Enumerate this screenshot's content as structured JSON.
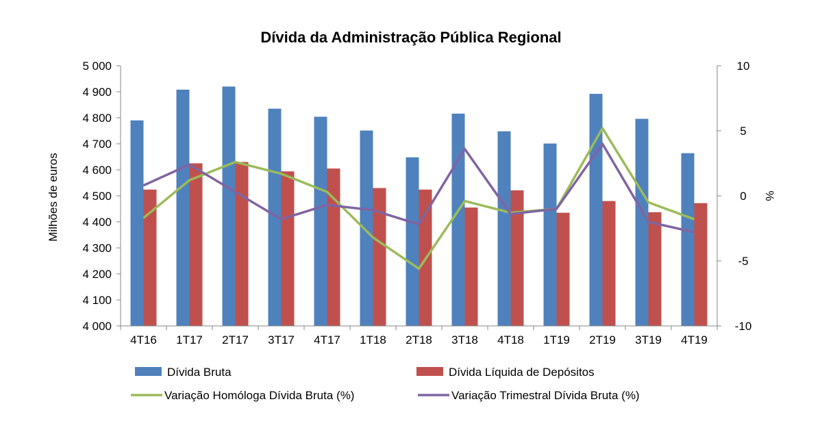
{
  "chart_data": {
    "type": "bar",
    "title": "Dívida da Administração Pública Regional",
    "categories": [
      "4T16",
      "1T17",
      "2T17",
      "3T17",
      "4T17",
      "1T18",
      "2T18",
      "3T18",
      "4T18",
      "1T19",
      "2T19",
      "3T19",
      "4T19"
    ],
    "ylabel": "Milhões de euros",
    "ylim": [
      4000,
      5000
    ],
    "yticks": [
      "4 000",
      "4 100",
      "4 200",
      "4 300",
      "4 400",
      "4 500",
      "4 600",
      "4 700",
      "4 800",
      "4 900",
      "5 000"
    ],
    "y2label": "%",
    "y2lim": [
      -10,
      10
    ],
    "y2ticks": [
      "-10",
      "-5",
      "0",
      "5",
      "10"
    ],
    "grid": false,
    "legend_position": "bottom",
    "bar_series": [
      {
        "name": "Dívida Bruta",
        "color": "#4F81BD",
        "values": [
          4790,
          4908,
          4920,
          4835,
          4804,
          4751,
          4648,
          4816,
          4748,
          4701,
          4892,
          4796,
          4664
        ]
      },
      {
        "name": "Dívida Líquida de Depósitos",
        "color": "#C0504D",
        "values": [
          4524,
          4625,
          4630,
          4594,
          4605,
          4530,
          4524,
          4455,
          4521,
          4435,
          4480,
          4437,
          4472
        ]
      }
    ],
    "line_series": [
      {
        "name": "Variação Homóloga Dívida Bruta (%)",
        "color": "#9BBB59",
        "values": [
          -1.7,
          1.2,
          2.6,
          1.7,
          0.3,
          -3.2,
          -5.6,
          -0.4,
          -1.3,
          -1.0,
          5.2,
          -0.5,
          -1.8
        ]
      },
      {
        "name": "Variação Trimestral Dívida Bruta (%)",
        "color": "#8064A2",
        "values": [
          0.8,
          2.4,
          0.3,
          -1.8,
          -0.7,
          -1.1,
          -2.2,
          3.6,
          -1.4,
          -1.0,
          4.0,
          -2.0,
          -2.8
        ]
      }
    ]
  }
}
